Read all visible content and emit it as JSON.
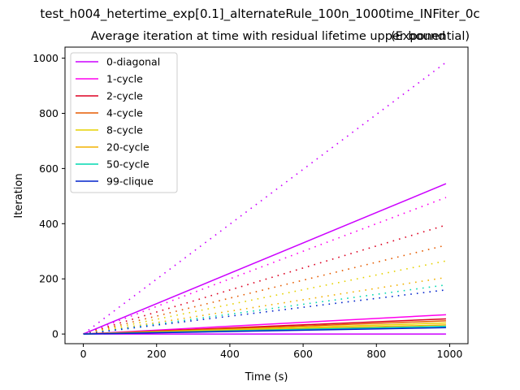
{
  "figure": {
    "suptitle": "test_h004_hetertime_exp[0.1]_alternateRule_100n_1000time_INFiter_0c"
  },
  "chart_data": {
    "type": "line",
    "title": "Average iteration at time with residual lifetime upper bound",
    "title_right": "(Exponential)",
    "xlabel": "Time (s)",
    "ylabel": "Iteration",
    "xlim": [
      -50,
      1050
    ],
    "ylim": [
      -35,
      1040
    ],
    "xticks": [
      0,
      200,
      400,
      600,
      800,
      1000
    ],
    "yticks": [
      0,
      200,
      400,
      600,
      800,
      1000
    ],
    "grid": false,
    "legend_position": "top-left",
    "series": [
      {
        "name": "0-diagonal",
        "color": "#cc00ff",
        "solid": [
          [
            0,
            0
          ],
          [
            990,
            545
          ]
        ],
        "solid_low": [
          [
            0,
            0
          ],
          [
            990,
            0
          ]
        ],
        "dotted": [
          [
            0,
            0
          ],
          [
            990,
            985
          ]
        ]
      },
      {
        "name": "1-cycle",
        "color": "#ff00ee",
        "solid": [
          [
            0,
            0
          ],
          [
            990,
            70
          ]
        ],
        "dotted": [
          [
            0,
            0
          ],
          [
            990,
            495
          ]
        ]
      },
      {
        "name": "2-cycle",
        "color": "#dd0022",
        "solid": [
          [
            0,
            0
          ],
          [
            990,
            55
          ]
        ],
        "dotted": [
          [
            0,
            0
          ],
          [
            990,
            395
          ]
        ]
      },
      {
        "name": "4-cycle",
        "color": "#e65c00",
        "solid": [
          [
            0,
            0
          ],
          [
            990,
            48
          ]
        ],
        "dotted": [
          [
            0,
            0
          ],
          [
            990,
            322
          ]
        ]
      },
      {
        "name": "8-cycle",
        "color": "#e6d200",
        "solid": [
          [
            0,
            0
          ],
          [
            990,
            40
          ]
        ],
        "dotted": [
          [
            0,
            0
          ],
          [
            990,
            265
          ]
        ]
      },
      {
        "name": "20-cycle",
        "color": "#f2b200",
        "solid": [
          [
            0,
            0
          ],
          [
            990,
            33
          ]
        ],
        "dotted": [
          [
            0,
            0
          ],
          [
            990,
            205
          ]
        ]
      },
      {
        "name": "50-cycle",
        "color": "#00d9b0",
        "solid": [
          [
            0,
            0
          ],
          [
            990,
            28
          ]
        ],
        "dotted": [
          [
            0,
            0
          ],
          [
            990,
            178
          ]
        ]
      },
      {
        "name": "99-clique",
        "color": "#0022cc",
        "solid": [
          [
            0,
            0
          ],
          [
            990,
            23
          ]
        ],
        "dotted": [
          [
            0,
            0
          ],
          [
            990,
            160
          ]
        ]
      }
    ]
  }
}
